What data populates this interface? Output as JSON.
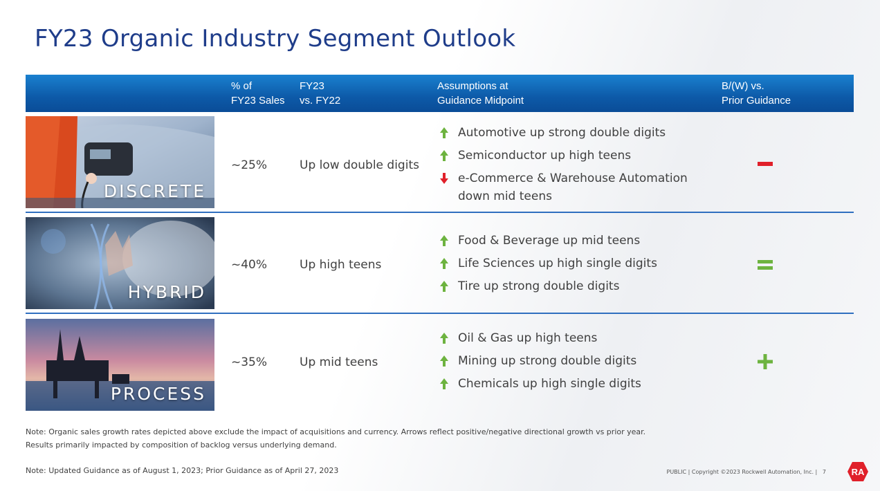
{
  "title": "FY23 Organic Industry Segment Outlook",
  "header": {
    "col1_line1": "% of",
    "col1_line2": "FY23 Sales",
    "col2_line1": "FY23",
    "col2_line2": "vs. FY22",
    "col3_line1": "Assumptions at",
    "col3_line2": "Guidance Midpoint",
    "col4_line1": "B/(W) vs.",
    "col4_line2": "Prior Guidance"
  },
  "rows": [
    {
      "segment": "DISCRETE",
      "pct_sales": "~25%",
      "growth": "Up low double digits",
      "assumptions": [
        {
          "direction": "up",
          "text": "Automotive up strong double digits"
        },
        {
          "direction": "up",
          "text": "Semiconductor up high teens"
        },
        {
          "direction": "down",
          "text": "e-Commerce & Warehouse Automation down mid teens"
        }
      ],
      "vs_prior": "–",
      "vs_prior_color": "#e0202a"
    },
    {
      "segment": "HYBRID",
      "pct_sales": "~40%",
      "growth": "Up high teens",
      "assumptions": [
        {
          "direction": "up",
          "text": "Food & Beverage up mid teens"
        },
        {
          "direction": "up",
          "text": "Life Sciences up high single digits"
        },
        {
          "direction": "up",
          "text": "Tire up strong double digits"
        }
      ],
      "vs_prior": "=",
      "vs_prior_color": "#6db33f"
    },
    {
      "segment": "PROCESS",
      "pct_sales": "~35%",
      "growth": "Up mid teens",
      "assumptions": [
        {
          "direction": "up",
          "text": "Oil & Gas up high teens"
        },
        {
          "direction": "up",
          "text": "Mining up strong double digits"
        },
        {
          "direction": "up",
          "text": "Chemicals up high single digits"
        }
      ],
      "vs_prior": "+",
      "vs_prior_color": "#6db33f"
    }
  ],
  "notes": {
    "note1_line1": "Note: Organic sales growth rates depicted above exclude the impact of acquisitions and currency.  Arrows reflect positive/negative directional growth vs prior year.",
    "note1_line2": "Results primarily impacted by composition of backlog versus underlying demand.",
    "note2": "Note: Updated Guidance as of August 1, 2023; Prior Guidance as of April 27, 2023"
  },
  "footer": {
    "copyright": "PUBLIC | Copyright ©2023 Rockwell Automation, Inc. |",
    "page_number": "7",
    "logo_text": "RA"
  },
  "colors": {
    "title": "#1f3d8a",
    "up_arrow": "#6db33f",
    "down_arrow": "#e0202a",
    "logo": "#e0202a"
  }
}
